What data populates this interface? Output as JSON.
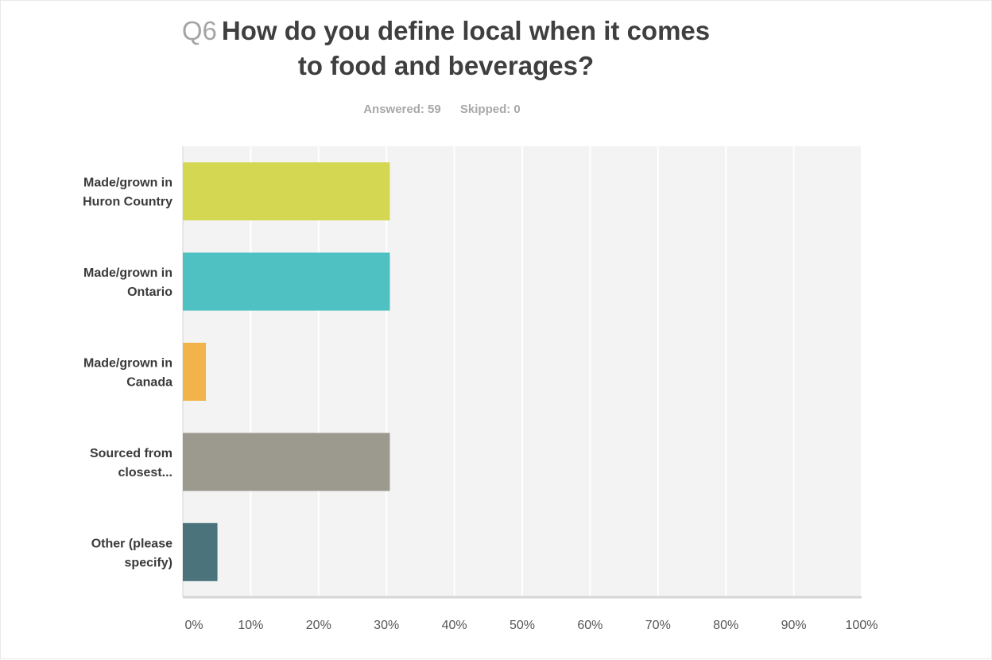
{
  "question": {
    "number": "Q6",
    "title_line1": "How do you define local when it comes",
    "title_line2": "to food and beverages?"
  },
  "stats": {
    "answered": "Answered: 59",
    "skipped": "Skipped: 0"
  },
  "chart_data": {
    "type": "bar",
    "orientation": "horizontal",
    "title": "Q6 How do you define local when it comes to food and beverages?",
    "categories": [
      [
        "Made/grown in",
        "Huron Country"
      ],
      [
        "Made/grown in",
        "Ontario"
      ],
      [
        "Made/grown in",
        "Canada"
      ],
      [
        "Sourced from",
        "closest..."
      ],
      [
        "Other (please",
        "specify)"
      ]
    ],
    "values": [
      30.5,
      30.5,
      3.4,
      30.5,
      5.1
    ],
    "colors": [
      "#d3d752",
      "#4fc1c3",
      "#f2b44a",
      "#9c9a8e",
      "#4a737b"
    ],
    "xlim": [
      0,
      100
    ],
    "ticks": [
      "0%",
      "10%",
      "20%",
      "30%",
      "40%",
      "50%",
      "60%",
      "70%",
      "80%",
      "90%",
      "100%"
    ],
    "tick_values": [
      0,
      10,
      20,
      30,
      40,
      50,
      60,
      70,
      80,
      90,
      100
    ],
    "grid": true,
    "legend": "none"
  }
}
